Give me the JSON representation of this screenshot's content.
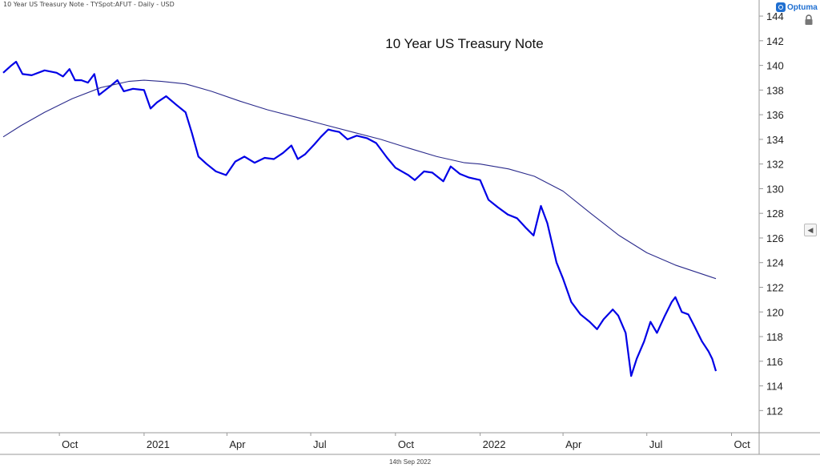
{
  "header": {
    "instrument_label": "10 Year US Treasury Note - TYSpot:AFUT - Daily - USD",
    "brand": "Optuma"
  },
  "footer": {
    "date": "14th Sep 2022"
  },
  "icons": {
    "lock": "lock-icon",
    "side_toggle": "chevron-left-icon"
  },
  "colors": {
    "price": "#0000e6",
    "average": "#2b2b8c",
    "axis": "#999999"
  },
  "chart_data": {
    "type": "line",
    "title": "10 Year US Treasury Note",
    "x_axis": {
      "range": [
        "2020-08-01",
        "2022-10-31"
      ],
      "ticks": [
        {
          "date": "2020-10-01",
          "label": "Oct"
        },
        {
          "date": "2021-01-01",
          "label": "2021"
        },
        {
          "date": "2021-04-01",
          "label": "Apr"
        },
        {
          "date": "2021-07-01",
          "label": "Jul"
        },
        {
          "date": "2021-10-01",
          "label": "Oct"
        },
        {
          "date": "2022-01-01",
          "label": "2022"
        },
        {
          "date": "2022-04-01",
          "label": "Apr"
        },
        {
          "date": "2022-07-01",
          "label": "Jul"
        },
        {
          "date": "2022-10-01",
          "label": "Oct"
        }
      ]
    },
    "y_axis": {
      "position": "right",
      "range": [
        110.2,
        144.2
      ],
      "ticks": [
        112,
        114,
        116,
        118,
        120,
        122,
        124,
        126,
        128,
        130,
        132,
        134,
        136,
        138,
        140,
        142,
        144
      ]
    },
    "grid": false,
    "legend": "none",
    "series": [
      {
        "kind": "price",
        "points": [
          [
            "2020-08-01",
            139.4
          ],
          [
            "2020-08-10",
            140.0
          ],
          [
            "2020-08-15",
            140.3
          ],
          [
            "2020-08-22",
            139.3
          ],
          [
            "2020-09-01",
            139.2
          ],
          [
            "2020-09-15",
            139.6
          ],
          [
            "2020-09-28",
            139.4
          ],
          [
            "2020-10-05",
            139.1
          ],
          [
            "2020-10-12",
            139.7
          ],
          [
            "2020-10-18",
            138.8
          ],
          [
            "2020-10-25",
            138.8
          ],
          [
            "2020-11-01",
            138.6
          ],
          [
            "2020-11-08",
            139.3
          ],
          [
            "2020-11-13",
            137.6
          ],
          [
            "2020-11-25",
            138.3
          ],
          [
            "2020-12-03",
            138.8
          ],
          [
            "2020-12-10",
            137.9
          ],
          [
            "2020-12-20",
            138.1
          ],
          [
            "2021-01-01",
            138.0
          ],
          [
            "2021-01-08",
            136.5
          ],
          [
            "2021-01-15",
            137.0
          ],
          [
            "2021-01-25",
            137.5
          ],
          [
            "2021-02-05",
            136.8
          ],
          [
            "2021-02-15",
            136.2
          ],
          [
            "2021-02-22",
            134.5
          ],
          [
            "2021-03-01",
            132.6
          ],
          [
            "2021-03-10",
            132.0
          ],
          [
            "2021-03-20",
            131.4
          ],
          [
            "2021-03-31",
            131.1
          ],
          [
            "2021-04-10",
            132.2
          ],
          [
            "2021-04-20",
            132.6
          ],
          [
            "2021-05-01",
            132.1
          ],
          [
            "2021-05-12",
            132.5
          ],
          [
            "2021-05-22",
            132.4
          ],
          [
            "2021-06-01",
            132.9
          ],
          [
            "2021-06-10",
            133.5
          ],
          [
            "2021-06-17",
            132.4
          ],
          [
            "2021-06-25",
            132.8
          ],
          [
            "2021-07-05",
            133.6
          ],
          [
            "2021-07-12",
            134.2
          ],
          [
            "2021-07-20",
            134.8
          ],
          [
            "2021-07-25",
            134.7
          ],
          [
            "2021-08-01",
            134.6
          ],
          [
            "2021-08-10",
            134.0
          ],
          [
            "2021-08-20",
            134.3
          ],
          [
            "2021-08-31",
            134.1
          ],
          [
            "2021-09-10",
            133.7
          ],
          [
            "2021-09-22",
            132.5
          ],
          [
            "2021-10-01",
            131.7
          ],
          [
            "2021-10-15",
            131.1
          ],
          [
            "2021-10-22",
            130.7
          ],
          [
            "2021-11-01",
            131.4
          ],
          [
            "2021-11-10",
            131.3
          ],
          [
            "2021-11-22",
            130.6
          ],
          [
            "2021-11-30",
            131.8
          ],
          [
            "2021-12-10",
            131.2
          ],
          [
            "2021-12-20",
            130.9
          ],
          [
            "2022-01-01",
            130.7
          ],
          [
            "2022-01-10",
            129.1
          ],
          [
            "2022-01-20",
            128.5
          ],
          [
            "2022-01-31",
            127.9
          ],
          [
            "2022-02-10",
            127.6
          ],
          [
            "2022-02-20",
            126.8
          ],
          [
            "2022-02-28",
            126.2
          ],
          [
            "2022-03-05",
            127.7
          ],
          [
            "2022-03-08",
            128.6
          ],
          [
            "2022-03-15",
            127.2
          ],
          [
            "2022-03-25",
            124.0
          ],
          [
            "2022-04-01",
            122.7
          ],
          [
            "2022-04-10",
            120.8
          ],
          [
            "2022-04-20",
            119.8
          ],
          [
            "2022-04-30",
            119.2
          ],
          [
            "2022-05-08",
            118.6
          ],
          [
            "2022-05-15",
            119.4
          ],
          [
            "2022-05-25",
            120.2
          ],
          [
            "2022-05-31",
            119.7
          ],
          [
            "2022-06-08",
            118.3
          ],
          [
            "2022-06-14",
            114.8
          ],
          [
            "2022-06-20",
            116.2
          ],
          [
            "2022-06-28",
            117.6
          ],
          [
            "2022-07-05",
            119.2
          ],
          [
            "2022-07-12",
            118.3
          ],
          [
            "2022-07-20",
            119.6
          ],
          [
            "2022-07-28",
            120.8
          ],
          [
            "2022-08-01",
            121.2
          ],
          [
            "2022-08-08",
            120.0
          ],
          [
            "2022-08-15",
            119.8
          ],
          [
            "2022-08-22",
            118.8
          ],
          [
            "2022-08-30",
            117.6
          ],
          [
            "2022-09-06",
            116.8
          ],
          [
            "2022-09-10",
            116.2
          ],
          [
            "2022-09-14",
            115.2
          ]
        ]
      },
      {
        "kind": "moving-average",
        "points": [
          [
            "2020-08-01",
            134.2
          ],
          [
            "2020-08-20",
            135.1
          ],
          [
            "2020-09-15",
            136.2
          ],
          [
            "2020-10-15",
            137.3
          ],
          [
            "2020-11-15",
            138.2
          ],
          [
            "2020-12-15",
            138.7
          ],
          [
            "2021-01-01",
            138.8
          ],
          [
            "2021-01-20",
            138.7
          ],
          [
            "2021-02-15",
            138.5
          ],
          [
            "2021-03-15",
            137.9
          ],
          [
            "2021-04-15",
            137.1
          ],
          [
            "2021-05-15",
            136.4
          ],
          [
            "2021-06-15",
            135.8
          ],
          [
            "2021-07-15",
            135.2
          ],
          [
            "2021-08-15",
            134.6
          ],
          [
            "2021-09-15",
            134.0
          ],
          [
            "2021-10-15",
            133.3
          ],
          [
            "2021-11-15",
            132.6
          ],
          [
            "2021-12-15",
            132.1
          ],
          [
            "2022-01-01",
            132.0
          ],
          [
            "2022-02-01",
            131.6
          ],
          [
            "2022-03-01",
            131.0
          ],
          [
            "2022-04-01",
            129.8
          ],
          [
            "2022-05-01",
            128.0
          ],
          [
            "2022-06-01",
            126.2
          ],
          [
            "2022-07-01",
            124.8
          ],
          [
            "2022-08-01",
            123.8
          ],
          [
            "2022-09-14",
            122.7
          ]
        ]
      }
    ]
  }
}
